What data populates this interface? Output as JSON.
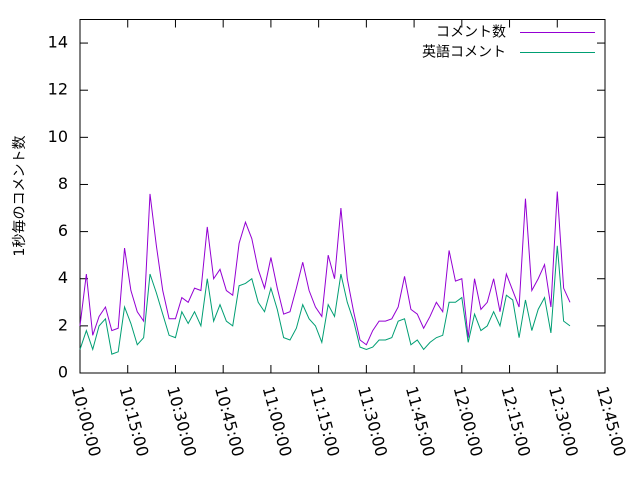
{
  "chart_data": {
    "type": "line",
    "ylabel": "1秒毎のコメント数",
    "x": [
      600,
      602,
      604,
      606,
      608,
      610,
      612,
      614,
      616,
      618,
      620,
      622,
      624,
      626,
      628,
      630,
      632,
      634,
      636,
      638,
      640,
      642,
      644,
      646,
      648,
      650,
      652,
      654,
      656,
      658,
      660,
      662,
      664,
      666,
      668,
      670,
      672,
      674,
      676,
      678,
      680,
      682,
      684,
      686,
      688,
      690,
      692,
      694,
      696,
      698,
      700,
      702,
      704,
      706,
      708,
      710,
      712,
      714,
      716,
      718,
      720,
      722,
      724,
      726,
      728,
      730,
      732,
      734,
      736,
      738,
      740,
      742,
      744,
      746,
      748,
      750,
      752,
      754
    ],
    "series": [
      {
        "name": "コメント数",
        "color": "#9400d3",
        "values": [
          2.0,
          4.2,
          1.6,
          2.4,
          2.8,
          1.8,
          1.9,
          5.3,
          3.5,
          2.6,
          2.2,
          7.6,
          5.4,
          3.5,
          2.3,
          2.3,
          3.2,
          3.0,
          3.6,
          3.5,
          6.2,
          4.0,
          4.4,
          3.5,
          3.3,
          5.5,
          6.4,
          5.7,
          4.4,
          3.6,
          4.9,
          3.6,
          2.5,
          2.6,
          3.6,
          4.7,
          3.5,
          2.8,
          2.4,
          5.0,
          4.0,
          7.0,
          4.0,
          2.6,
          1.4,
          1.2,
          1.8,
          2.2,
          2.2,
          2.3,
          2.8,
          4.1,
          2.7,
          2.5,
          1.9,
          2.4,
          3.0,
          2.6,
          5.2,
          3.9,
          4.0,
          1.5,
          4.0,
          2.7,
          3.0,
          4.0,
          2.6,
          4.2,
          3.5,
          2.8,
          7.4,
          3.5,
          4.0,
          4.6,
          2.8,
          7.7,
          3.6,
          3.0
        ]
      },
      {
        "name": "英語コメント",
        "color": "#009e73",
        "values": [
          1.0,
          1.8,
          1.0,
          2.0,
          2.3,
          0.8,
          0.9,
          2.8,
          2.1,
          1.2,
          1.5,
          4.2,
          3.4,
          2.5,
          1.6,
          1.5,
          2.6,
          2.1,
          2.6,
          2.0,
          4.0,
          2.2,
          2.9,
          2.2,
          2.0,
          3.7,
          3.8,
          4.0,
          3.0,
          2.6,
          3.6,
          2.7,
          1.5,
          1.4,
          1.9,
          2.9,
          2.3,
          2.0,
          1.3,
          2.9,
          2.4,
          4.2,
          3.0,
          2.2,
          1.1,
          1.0,
          1.1,
          1.4,
          1.4,
          1.5,
          2.2,
          2.3,
          1.2,
          1.4,
          1.0,
          1.3,
          1.5,
          1.6,
          3.0,
          3.0,
          3.2,
          1.3,
          2.5,
          1.8,
          2.0,
          2.6,
          2.0,
          3.3,
          3.1,
          1.5,
          3.1,
          1.8,
          2.7,
          3.2,
          1.7,
          5.4,
          2.2,
          2.0
        ]
      }
    ],
    "xlim": [
      600,
      765
    ],
    "xticks": [
      {
        "value": 600,
        "label": "10:00:00"
      },
      {
        "value": 615,
        "label": "10:15:00"
      },
      {
        "value": 630,
        "label": "10:30:00"
      },
      {
        "value": 645,
        "label": "10:45:00"
      },
      {
        "value": 660,
        "label": "11:00:00"
      },
      {
        "value": 675,
        "label": "11:15:00"
      },
      {
        "value": 690,
        "label": "11:30:00"
      },
      {
        "value": 705,
        "label": "11:45:00"
      },
      {
        "value": 720,
        "label": "12:00:00"
      },
      {
        "value": 735,
        "label": "12:15:00"
      },
      {
        "value": 750,
        "label": "12:30:00"
      },
      {
        "value": 765,
        "label": "12:45:00"
      }
    ],
    "ylim": [
      0,
      15
    ],
    "yticks": [
      0,
      2,
      4,
      6,
      8,
      10,
      12,
      14
    ],
    "grid": false,
    "legend": "top-right"
  }
}
